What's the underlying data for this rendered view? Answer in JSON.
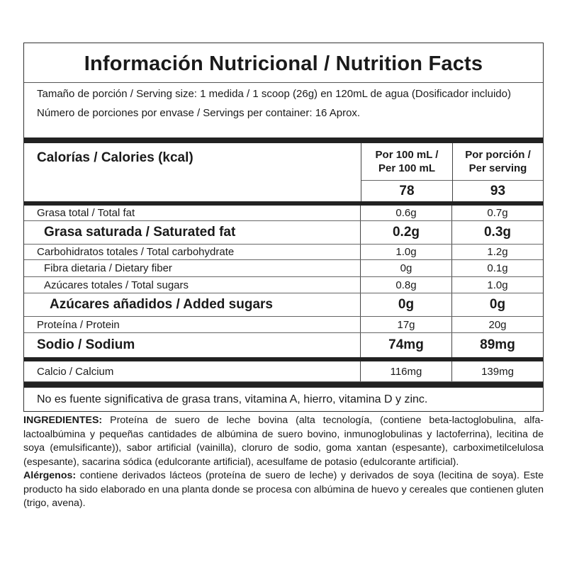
{
  "title": "Información Nutricional / Nutrition Facts",
  "serving": {
    "size": "Tamaño de porción / Serving size: 1 medida / 1 scoop (26g) en 120mL de agua (Dosificador incluido)",
    "servings": "Número de porciones por envase / Servings per container: 16 Aprox."
  },
  "header": {
    "calories_label": "Calorías / Calories (kcal)",
    "col1_label_line1": "Por 100 mL /",
    "col1_label_line2": "Per 100 mL",
    "col2_label_line1": "Por porción /",
    "col2_label_line2": "Per serving",
    "calories_per100": "78",
    "calories_serving": "93"
  },
  "rows": [
    {
      "label": "Grasa total / Total fat",
      "per100": "0.6g",
      "serving": "0.7g"
    },
    {
      "label": "Grasa saturada / Saturated fat",
      "per100": "0.2g",
      "serving": "0.3g"
    },
    {
      "label": "Carbohidratos totales / Total carbohydrate",
      "per100": "1.0g",
      "serving": "1.2g"
    },
    {
      "label": "Fibra dietaria / Dietary fiber",
      "per100": "0g",
      "serving": "0.1g"
    },
    {
      "label": "Azúcares totales / Total sugars",
      "per100": "0.8g",
      "serving": "1.0g"
    },
    {
      "label": "Azúcares añadidos / Added sugars",
      "per100": "0g",
      "serving": "0g"
    },
    {
      "label": "Proteína / Protein",
      "per100": "17g",
      "serving": "20g"
    },
    {
      "label": "Sodio / Sodium",
      "per100": "74mg",
      "serving": "89mg"
    }
  ],
  "calcium": {
    "label": "Calcio / Calcium",
    "per100": "116mg",
    "serving": "139mg"
  },
  "footnote": "No es fuente significativa de grasa trans, vitamina  A, hierro, vitamina D y zinc.",
  "ingredients": {
    "heading": "INGREDIENTES:",
    "text": " Proteína de suero de leche bovina (alta tecnología, (contiene beta-lactoglobulina, alfa-lactoalbúmina y pequeñas cantidades de albúmina de suero bovino, inmunoglobulinas y lactoferrina), lecitina de soya (emulsificante)), sabor artificial (vainilla), cloruro de sodio, goma xantan (espesante), carboximetilcelulosa (espesante), sacarina sódica (edulcorante artificial), acesulfame de potasio (edulcorante artificial).",
    "allergens_heading": "Alérgenos:",
    "allergens_text": " contiene derivados lácteos (proteína de suero de leche) y derivados de soya (lecitina de soya). Este producto ha sido elaborado en una planta donde se procesa con albúmina de huevo y cereales que contienen gluten (trigo, avena)."
  }
}
